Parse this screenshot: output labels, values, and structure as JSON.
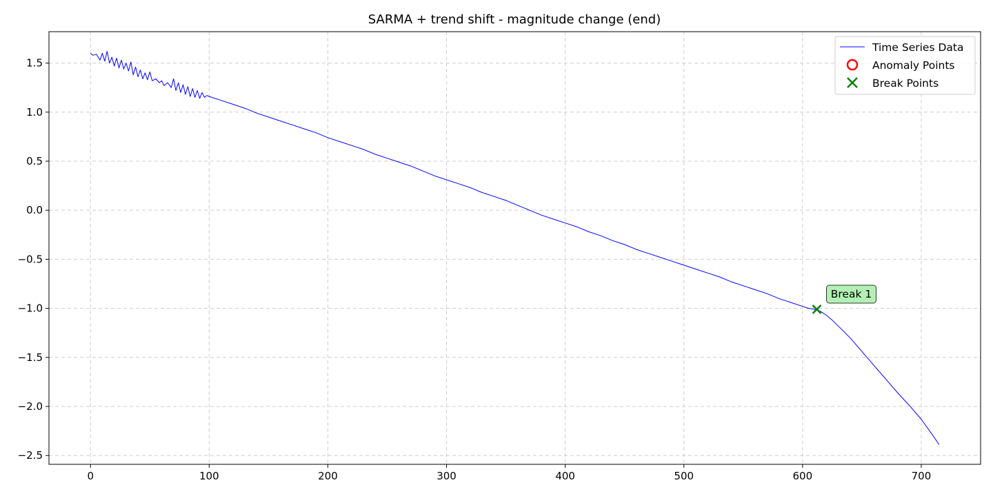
{
  "chart_data": {
    "type": "line",
    "title": "SARMA + trend shift - magnitude change (end)",
    "xlabel": "",
    "ylabel": "",
    "xlim": [
      -35,
      750
    ],
    "ylim": [
      -2.59,
      1.82
    ],
    "x_ticks": [
      0,
      100,
      200,
      300,
      400,
      500,
      600,
      700
    ],
    "y_ticks": [
      1.5,
      1.0,
      0.5,
      0.0,
      -0.5,
      -1.0,
      -1.5,
      -2.0,
      -2.5
    ],
    "x_tick_labels": [
      "0",
      "100",
      "200",
      "300",
      "400",
      "500",
      "600",
      "700"
    ],
    "y_tick_labels": [
      "1.5",
      "1.0",
      "0.5",
      "0.0",
      "−0.5",
      "−1.0",
      "−1.5",
      "−2.0",
      "−2.5"
    ],
    "grid": true,
    "legend_position": "top-right",
    "legend": [
      "Time Series Data",
      "Anomaly Points",
      "Break Points"
    ],
    "series": [
      {
        "name": "Time Series Data",
        "color": "#0000ff",
        "x": [
          0,
          2,
          5,
          8,
          10,
          12,
          14,
          16,
          18,
          20,
          22,
          24,
          26,
          28,
          30,
          32,
          34,
          36,
          38,
          40,
          42,
          44,
          46,
          48,
          50,
          52,
          55,
          58,
          60,
          62,
          65,
          68,
          70,
          72,
          74,
          76,
          78,
          80,
          82,
          84,
          86,
          88,
          90,
          92,
          94,
          96,
          98,
          100,
          110,
          120,
          130,
          140,
          150,
          160,
          170,
          180,
          190,
          200,
          210,
          220,
          230,
          240,
          250,
          260,
          270,
          280,
          290,
          300,
          310,
          320,
          330,
          340,
          350,
          360,
          370,
          380,
          390,
          400,
          410,
          420,
          430,
          440,
          450,
          460,
          470,
          480,
          490,
          500,
          510,
          520,
          530,
          540,
          550,
          560,
          570,
          580,
          590,
          600,
          605,
          610,
          612,
          615,
          620,
          625,
          630,
          640,
          650,
          660,
          670,
          680,
          690,
          700,
          710,
          715
        ],
        "y": [
          1.6,
          1.58,
          1.59,
          1.53,
          1.6,
          1.52,
          1.62,
          1.5,
          1.56,
          1.47,
          1.55,
          1.45,
          1.53,
          1.44,
          1.5,
          1.42,
          1.51,
          1.38,
          1.46,
          1.36,
          1.43,
          1.34,
          1.4,
          1.33,
          1.41,
          1.32,
          1.34,
          1.3,
          1.32,
          1.27,
          1.3,
          1.25,
          1.34,
          1.22,
          1.3,
          1.2,
          1.28,
          1.18,
          1.26,
          1.16,
          1.24,
          1.15,
          1.22,
          1.14,
          1.2,
          1.15,
          1.17,
          1.16,
          1.12,
          1.08,
          1.04,
          0.99,
          0.95,
          0.91,
          0.87,
          0.83,
          0.79,
          0.74,
          0.7,
          0.66,
          0.62,
          0.57,
          0.53,
          0.49,
          0.45,
          0.4,
          0.35,
          0.31,
          0.27,
          0.23,
          0.18,
          0.14,
          0.1,
          0.05,
          0.0,
          -0.05,
          -0.09,
          -0.13,
          -0.17,
          -0.22,
          -0.26,
          -0.31,
          -0.35,
          -0.4,
          -0.44,
          -0.48,
          -0.52,
          -0.56,
          -0.6,
          -0.64,
          -0.68,
          -0.73,
          -0.77,
          -0.81,
          -0.85,
          -0.9,
          -0.94,
          -0.98,
          -1.0,
          -1.01,
          -1.02,
          -1.03,
          -1.07,
          -1.12,
          -1.18,
          -1.3,
          -1.44,
          -1.58,
          -1.72,
          -1.86,
          -1.99,
          -2.13,
          -2.3,
          -2.39
        ]
      }
    ],
    "anomaly_points": [],
    "break_points": [
      {
        "label": "Break 1",
        "x": 612,
        "y": -1.01,
        "color": "#008000"
      }
    ],
    "anomaly_color": "#ff0000",
    "grid_color": "#cccccc"
  }
}
